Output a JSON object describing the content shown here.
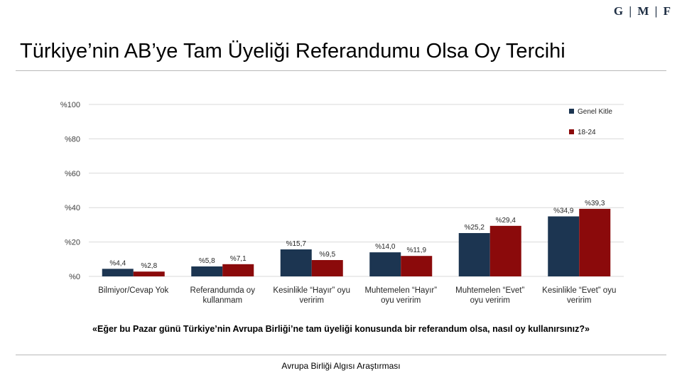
{
  "logo": "G | M | F",
  "title": "Türkiye’nin AB’ye Tam Üyeliği Referandumu Olsa Oy Tercihi",
  "question": "«Eğer bu Pazar günü Türkiye’nin Avrupa Birliği’ne tam üyeliği konusunda bir referandum olsa, nasıl oy kullanırsınız?»",
  "footer": "Avrupa Birliği Algısı Araştırması",
  "colors": {
    "genel": "#1c3551",
    "young": "#8b0a0b",
    "grid": "#d9d9d9"
  },
  "chart_data": {
    "type": "bar",
    "title": "",
    "xlabel": "",
    "ylabel": "",
    "ylim": [
      0,
      100
    ],
    "yticks": [
      0,
      20,
      40,
      60,
      80,
      100
    ],
    "ytick_labels": [
      "%0",
      "%20",
      "%40",
      "%60",
      "%80",
      "%100"
    ],
    "grid": true,
    "legend_position": "top-right",
    "categories": [
      [
        "Bilmiyor/Cevap Yok"
      ],
      [
        "Referandumda oy",
        "kullanmam"
      ],
      [
        "Kesinlikle “Hayır” oyu",
        "veririm"
      ],
      [
        "Muhtemelen “Hayır”",
        "oyu veririm"
      ],
      [
        "Muhtemelen “Evet”",
        "oyu veririm"
      ],
      [
        "Kesinlikle “Evet” oyu",
        "veririm"
      ]
    ],
    "series": [
      {
        "name": "Genel Kitle",
        "values": [
          4.4,
          5.8,
          15.7,
          14.0,
          25.2,
          34.9
        ],
        "labels": [
          "%4,4",
          "%5,8",
          "%15,7",
          "%14,0",
          "%25,2",
          "%34,9"
        ]
      },
      {
        "name": "18-24",
        "values": [
          2.8,
          7.1,
          9.5,
          11.9,
          29.4,
          39.3
        ],
        "labels": [
          "%2,8",
          "%7,1",
          "%9,5",
          "%11,9",
          "%29,4",
          "%39,3"
        ]
      }
    ]
  }
}
